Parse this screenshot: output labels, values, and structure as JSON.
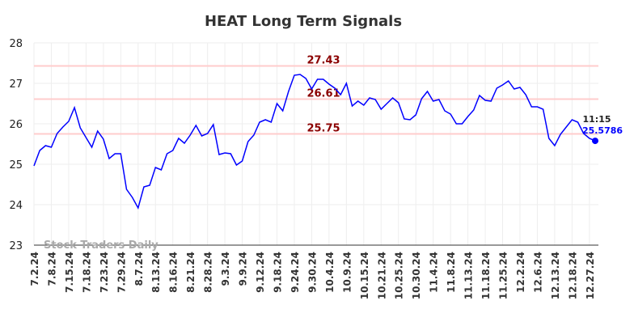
{
  "chart_data": {
    "type": "line",
    "title": "HEAT Long Term Signals",
    "watermark": "Stock Traders Daily",
    "categories": [
      "7.2.24",
      null,
      null,
      "7.8.24",
      null,
      null,
      "7.15.24",
      null,
      null,
      "7.18.24",
      null,
      null,
      "7.23.24",
      null,
      null,
      "7.29.24",
      null,
      null,
      "8.7.24",
      null,
      null,
      "8.13.24",
      null,
      null,
      "8.16.24",
      null,
      null,
      "8.21.24",
      null,
      null,
      "8.28.24",
      null,
      null,
      "9.3.24",
      null,
      null,
      "9.9.24",
      null,
      null,
      "9.12.24",
      null,
      null,
      "9.18.24",
      null,
      null,
      "9.24.24",
      null,
      null,
      "9.30.24",
      null,
      null,
      "10.4.24",
      null,
      null,
      "10.9.24",
      null,
      null,
      "10.15.24",
      null,
      null,
      "10.21.24",
      null,
      null,
      "10.25.24",
      null,
      null,
      "10.30.24",
      null,
      null,
      "11.4.24",
      null,
      null,
      "11.8.24",
      null,
      null,
      "11.13.24",
      null,
      null,
      "11.18.24",
      null,
      null,
      "11.25.24",
      null,
      null,
      "12.2.24",
      null,
      null,
      "12.6.24",
      null,
      null,
      "12.13.24",
      null,
      null,
      "12.18.24",
      null,
      null,
      "12.27.24",
      null
    ],
    "series": [
      {
        "name": "HEAT",
        "color": "#0000ff",
        "values": [
          24.96,
          25.34,
          25.46,
          25.42,
          25.76,
          25.92,
          26.06,
          26.4,
          25.9,
          25.66,
          25.42,
          25.82,
          25.62,
          25.14,
          25.26,
          25.26,
          24.38,
          24.18,
          23.92,
          24.44,
          24.48,
          24.92,
          24.86,
          25.26,
          25.34,
          25.64,
          25.52,
          25.72,
          25.96,
          25.7,
          25.76,
          25.98,
          25.24,
          25.28,
          25.26,
          24.98,
          25.08,
          25.56,
          25.72,
          26.04,
          26.1,
          26.04,
          26.5,
          26.32,
          26.8,
          27.2,
          27.22,
          27.12,
          26.86,
          27.1,
          27.1,
          26.98,
          26.88,
          26.72,
          27.0,
          26.44,
          26.56,
          26.46,
          26.64,
          26.6,
          26.36,
          26.5,
          26.64,
          26.52,
          26.12,
          26.1,
          26.22,
          26.62,
          26.8,
          26.56,
          26.6,
          26.32,
          26.24,
          26.0,
          26.0,
          26.18,
          26.34,
          26.7,
          26.58,
          26.56,
          26.88,
          26.96,
          27.06,
          26.86,
          26.9,
          26.72,
          26.42,
          26.42,
          26.36,
          25.64,
          25.46,
          25.74,
          25.92,
          26.1,
          26.04,
          25.76,
          25.64,
          25.5786
        ]
      }
    ],
    "last_time": "11:15",
    "hlines": [
      27.43,
      26.61,
      25.75
    ],
    "hline_color": "#ffcccc",
    "hline_label_color": "#8b0000",
    "ylim": [
      23,
      28
    ],
    "yticks": [
      23,
      24,
      25,
      26,
      27,
      28
    ],
    "grid": true
  }
}
